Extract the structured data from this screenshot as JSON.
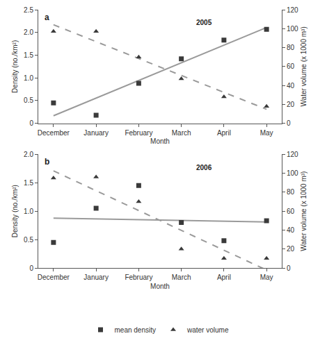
{
  "chart_data": [
    {
      "type": "scatter",
      "title": "2005",
      "annotations": [
        "a"
      ],
      "categories": [
        "December",
        "January",
        "February",
        "March",
        "April",
        "May"
      ],
      "x_label": "Month",
      "y_label": "Density (no./km²)",
      "y2_label": "Water volume (x 1000 m³)",
      "ylim": [
        0,
        2.5
      ],
      "yticks": [
        0,
        0.5,
        {
          "value": 1,
          "label": "1.0"
        },
        1.5,
        {
          "value": 2,
          "label": "2.0"
        },
        2.5
      ],
      "y2lim": [
        0,
        120
      ],
      "y2ticks": [
        0,
        20,
        40,
        60,
        80,
        100,
        120
      ],
      "series": [
        {
          "name": "mean density",
          "color": "#3a3a3a",
          "marker": "square",
          "line_style": "solid",
          "values": [
            0.45,
            0.18,
            0.88,
            1.42,
            1.83,
            2.07
          ]
        },
        {
          "name": "water volume",
          "color": "#3a3a3a",
          "marker": "triangle-up",
          "line_style": "dashed",
          "axis": "y2",
          "values": [
            97,
            97,
            70,
            47,
            28,
            18
          ]
        }
      ]
    },
    {
      "type": "scatter",
      "title": "2006",
      "annotations": [
        "b"
      ],
      "categories": [
        "December",
        "January",
        "February",
        "March",
        "April",
        "May"
      ],
      "x_label": "Month",
      "y_label": "Density (no./km²)",
      "y2_label": "Water volume (x 1000 m³)",
      "ylim": [
        0,
        2.0
      ],
      "yticks": [
        0,
        0.5,
        {
          "value": 1,
          "label": "1.0"
        },
        1.5,
        {
          "value": 2,
          "label": "2.0"
        }
      ],
      "y2lim": [
        0,
        120
      ],
      "y2ticks": [
        0,
        20,
        40,
        60,
        80,
        100,
        120
      ],
      "legend": "bottom",
      "series": [
        {
          "name": "mean density",
          "color": "#3a3a3a",
          "marker": "square",
          "line_style": "solid",
          "values": [
            0.45,
            1.05,
            1.45,
            0.8,
            0.48,
            0.83
          ]
        },
        {
          "name": "water volume",
          "color": "#3a3a3a",
          "marker": "triangle-up",
          "line_style": "dashed",
          "axis": "y2",
          "values": [
            95,
            96,
            70,
            20,
            10,
            10
          ]
        }
      ]
    }
  ]
}
